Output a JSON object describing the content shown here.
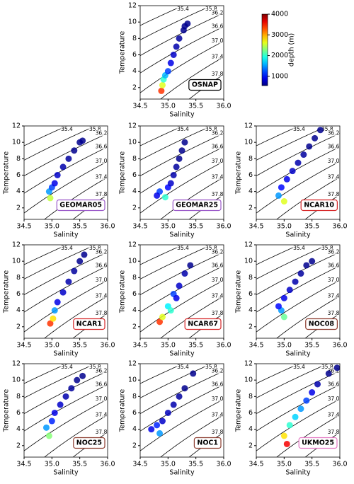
{
  "contour_levels": [
    35.4,
    35.8,
    36.2,
    36.6,
    {
      "value": 37,
      "label": "37.0"
    },
    37.4,
    37.8
  ],
  "colorbar": {
    "label": "depth (m)",
    "clim": [
      550,
      4000
    ],
    "ticks": [
      1000,
      2000,
      3000,
      4000
    ]
  },
  "chart_data": [
    {
      "type": "scatter",
      "label": "OSNAP",
      "label_color": "#000000",
      "xlabel": "Salinity",
      "ylabel": "Temperature",
      "xlim": [
        34.5,
        36
      ],
      "ylim": [
        0.6,
        12
      ],
      "xticks": [
        34.5,
        {
          "value": 35,
          "label": "35.0"
        },
        35.5,
        {
          "value": 36,
          "label": "36.0"
        }
      ],
      "yticks": [
        2,
        4,
        6,
        8,
        10,
        12
      ],
      "x": [
        34.88,
        34.9,
        34.92,
        34.95,
        35.0,
        35.05,
        35.1,
        35.15,
        35.2,
        35.28,
        35.35,
        35.3
      ],
      "values": [
        1.6,
        2.3,
        3.0,
        3.5,
        4.0,
        5,
        6,
        7,
        8,
        9,
        9.8,
        9.5
      ],
      "depth": [
        3400,
        2600,
        2000,
        1600,
        1200,
        900,
        800,
        700,
        650,
        600,
        600,
        600
      ]
    },
    {
      "type": "scatter",
      "label": "GEOMAR05",
      "label_color": "#9b59c9",
      "xlabel": "Salinity",
      "ylabel": "Temperature",
      "xlim": [
        34.5,
        36
      ],
      "ylim": [
        0.6,
        12
      ],
      "xticks": [
        34.5,
        {
          "value": 35,
          "label": "35.0"
        },
        35.5,
        {
          "value": 36,
          "label": "36.0"
        }
      ],
      "yticks": [
        2,
        4,
        6,
        8,
        10,
        12
      ],
      "x": [
        34.97,
        34.95,
        35.0,
        35.05,
        35.1,
        35.2,
        35.3,
        35.4,
        35.5,
        35.55
      ],
      "values": [
        3.2,
        4,
        4.5,
        5,
        6,
        7,
        8,
        9,
        10,
        10.2
      ],
      "depth": [
        2500,
        1500,
        1200,
        900,
        800,
        700,
        650,
        600,
        600,
        600
      ]
    },
    {
      "type": "scatter",
      "label": "GEOMAR25",
      "label_color": "#9b59c9",
      "xlabel": "Salinity",
      "ylabel": "Temperature",
      "xlim": [
        34.5,
        36
      ],
      "ylim": [
        0.6,
        12
      ],
      "xticks": [
        34.5,
        {
          "value": 35,
          "label": "35.0"
        },
        35.5,
        {
          "value": 36,
          "label": "36.0"
        }
      ],
      "yticks": [
        2,
        4,
        6,
        8,
        10,
        12
      ],
      "x": [
        34.95,
        34.85,
        34.8,
        35.0,
        35.05,
        35.1,
        35.15,
        35.2,
        35.25,
        35.3
      ],
      "values": [
        3.3,
        4,
        3.5,
        4.5,
        5,
        6,
        7,
        8,
        9,
        10
      ],
      "depth": [
        2000,
        1200,
        900,
        1000,
        800,
        700,
        650,
        600,
        600,
        600
      ]
    },
    {
      "type": "scatter",
      "label": "NCAR10",
      "label_color": "#d62728",
      "xlabel": "Salinity",
      "ylabel": "Temperature",
      "xlim": [
        34.5,
        36
      ],
      "ylim": [
        0.6,
        12
      ],
      "xticks": [
        34.5,
        {
          "value": 35,
          "label": "35.0"
        },
        35.5,
        {
          "value": 36,
          "label": "36.0"
        }
      ],
      "yticks": [
        2,
        4,
        6,
        8,
        10,
        12
      ],
      "x": [
        35.0,
        34.9,
        34.95,
        35.05,
        35.15,
        35.25,
        35.35,
        35.45,
        35.55,
        35.65
      ],
      "values": [
        2.8,
        3.5,
        4.5,
        5.5,
        6.5,
        7.5,
        8.5,
        9.5,
        10.5,
        11.5
      ],
      "depth": [
        2600,
        1500,
        1000,
        900,
        800,
        700,
        650,
        600,
        600,
        600
      ]
    },
    {
      "type": "scatter",
      "label": "NCAR1",
      "label_color": "#d62728",
      "xlabel": "Salinity",
      "ylabel": "Temperature",
      "xlim": [
        34.5,
        36
      ],
      "ylim": [
        0.6,
        12
      ],
      "xticks": [
        34.5,
        {
          "value": 35,
          "label": "35.0"
        },
        35.5,
        {
          "value": 36,
          "label": "36.0"
        }
      ],
      "yticks": [
        2,
        4,
        6,
        8,
        10,
        12
      ],
      "x": [
        34.97,
        35.02,
        35.05,
        35.1,
        35.2,
        35.3,
        35.4,
        35.5,
        35.58
      ],
      "values": [
        2.4,
        3,
        4,
        5,
        6.2,
        7.5,
        8.8,
        10,
        10.8
      ],
      "depth": [
        3400,
        2800,
        1500,
        900,
        800,
        700,
        650,
        600,
        600
      ]
    },
    {
      "type": "scatter",
      "label": "NCAR67",
      "label_color": "#d62728",
      "xlabel": "Salinity",
      "ylabel": "Temperature",
      "xlim": [
        34.5,
        36
      ],
      "ylim": [
        0.6,
        12
      ],
      "xticks": [
        34.5,
        {
          "value": 35,
          "label": "35.0"
        },
        35.5,
        {
          "value": 36,
          "label": "36.0"
        }
      ],
      "yticks": [
        2,
        4,
        6,
        8,
        10,
        12
      ],
      "x": [
        34.85,
        34.9,
        35.0,
        35.1,
        35.05,
        35.15,
        35.2,
        35.3,
        35.4
      ],
      "values": [
        2.6,
        3.2,
        4.5,
        6,
        4,
        5.5,
        7,
        8.5,
        9.5
      ],
      "depth": [
        3400,
        2600,
        1800,
        1200,
        2000,
        900,
        800,
        700,
        600
      ]
    },
    {
      "type": "scatter",
      "label": "NOC08",
      "label_color": "#8c3b2e",
      "xlabel": "Salinity",
      "ylabel": "Temperature",
      "xlim": [
        34.5,
        36
      ],
      "ylim": [
        0.6,
        12
      ],
      "xticks": [
        34.5,
        {
          "value": 35,
          "label": "35.0"
        },
        35.5,
        {
          "value": 36,
          "label": "36.0"
        }
      ],
      "yticks": [
        2,
        4,
        6,
        8,
        10,
        12
      ],
      "x": [
        35.0,
        34.95,
        34.9,
        35.0,
        35.1,
        35.2,
        35.3,
        35.4,
        35.5
      ],
      "values": [
        3.2,
        4,
        4.5,
        5.5,
        6.5,
        7.5,
        8.5,
        9.5,
        10
      ],
      "depth": [
        2200,
        1500,
        1000,
        900,
        800,
        700,
        650,
        600,
        600
      ]
    },
    {
      "type": "scatter",
      "label": "NOC25",
      "label_color": "#8c3b2e",
      "xlabel": "Salinity",
      "ylabel": "Temperature",
      "xlim": [
        34.5,
        36
      ],
      "ylim": [
        0.6,
        12
      ],
      "xticks": [
        34.5,
        {
          "value": 35,
          "label": "35.0"
        },
        35.5,
        {
          "value": 36,
          "label": "36.0"
        }
      ],
      "yticks": [
        2,
        4,
        6,
        8,
        10,
        12
      ],
      "x": [
        34.95,
        34.9,
        35.0,
        35.05,
        35.15,
        35.25,
        35.35,
        35.45,
        35.55
      ],
      "values": [
        3.2,
        4.2,
        5,
        6,
        7,
        8,
        9,
        10,
        10.5
      ],
      "depth": [
        2300,
        1500,
        1100,
        900,
        800,
        700,
        650,
        600,
        600
      ]
    },
    {
      "type": "scatter",
      "label": "NOC1",
      "label_color": "#8c3b2e",
      "xlabel": "Salinity",
      "ylabel": "Temperature",
      "xlim": [
        34.5,
        36
      ],
      "ylim": [
        0.6,
        12
      ],
      "xticks": [
        34.5,
        {
          "value": 35,
          "label": "35.0"
        },
        35.5,
        {
          "value": 36,
          "label": "36.0"
        }
      ],
      "yticks": [
        2,
        4,
        6,
        8,
        10,
        12
      ],
      "x": [
        34.85,
        34.8,
        34.7,
        34.9,
        35.0,
        35.1,
        35.2,
        35.3,
        35.45
      ],
      "values": [
        3.5,
        4.5,
        4,
        5,
        6,
        7,
        8,
        9,
        10.8
      ],
      "depth": [
        1500,
        1100,
        900,
        800,
        750,
        700,
        650,
        600,
        600
      ]
    },
    {
      "type": "scatter",
      "label": "UKMO25",
      "label_color": "#e377c2",
      "xlabel": "Salinity",
      "ylabel": "Temperature",
      "xlim": [
        34.5,
        36
      ],
      "ylim": [
        0.6,
        12
      ],
      "xticks": [
        34.5,
        {
          "value": 35,
          "label": "35.0"
        },
        35.5,
        {
          "value": 36,
          "label": "36.0"
        }
      ],
      "yticks": [
        2,
        4,
        6,
        8,
        10,
        12
      ],
      "x": [
        35.05,
        35.0,
        35.1,
        35.2,
        35.3,
        35.4,
        35.5,
        35.6,
        35.8,
        35.95
      ],
      "values": [
        2.2,
        3.2,
        4.5,
        5.5,
        6.5,
        7.5,
        8.5,
        9.5,
        10.8,
        11.5
      ],
      "depth": [
        3600,
        2800,
        2000,
        1700,
        1500,
        1200,
        900,
        700,
        600,
        600
      ]
    }
  ]
}
